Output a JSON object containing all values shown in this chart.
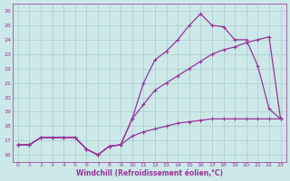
{
  "xlabel": "Windchill (Refroidissement éolien,°C)",
  "xlim": [
    -0.5,
    23.5
  ],
  "ylim": [
    15.5,
    26.5
  ],
  "yticks": [
    16,
    17,
    18,
    19,
    20,
    21,
    22,
    23,
    24,
    25,
    26
  ],
  "xticks": [
    0,
    1,
    2,
    3,
    4,
    5,
    6,
    7,
    8,
    9,
    10,
    11,
    12,
    13,
    14,
    15,
    16,
    17,
    18,
    19,
    20,
    21,
    22,
    23
  ],
  "bg_color": "#cce8e8",
  "line_color": "#993399",
  "grid_color": "#aacccc",
  "series1_x": [
    0,
    1,
    2,
    3,
    4,
    5,
    6,
    7,
    8,
    9,
    10,
    11,
    12,
    13,
    14,
    15,
    16,
    17,
    18,
    19,
    20,
    21,
    22,
    23
  ],
  "series1_y": [
    16.7,
    16.7,
    17.2,
    17.2,
    17.2,
    17.2,
    16.4,
    16.0,
    16.6,
    16.7,
    17.3,
    17.6,
    17.8,
    18.0,
    18.2,
    18.3,
    18.4,
    18.5,
    18.5,
    18.5,
    18.5,
    18.5,
    18.5,
    18.5
  ],
  "series2_x": [
    0,
    1,
    2,
    3,
    4,
    5,
    6,
    7,
    8,
    9,
    10,
    11,
    12,
    13,
    14,
    15,
    16,
    17,
    18,
    19,
    20,
    21,
    22,
    23
  ],
  "series2_y": [
    16.7,
    16.7,
    17.2,
    17.2,
    17.2,
    17.2,
    16.4,
    16.0,
    16.6,
    16.7,
    18.5,
    19.5,
    20.5,
    21.0,
    21.5,
    22.0,
    22.5,
    23.0,
    23.3,
    23.5,
    23.8,
    24.0,
    24.2,
    18.5
  ],
  "series3_x": [
    0,
    1,
    2,
    3,
    4,
    5,
    6,
    7,
    8,
    9,
    10,
    11,
    12,
    13,
    14,
    15,
    16,
    17,
    18,
    19,
    20,
    21,
    22,
    23
  ],
  "series3_y": [
    16.7,
    16.7,
    17.2,
    17.2,
    17.2,
    17.2,
    16.4,
    16.0,
    16.6,
    16.7,
    18.5,
    21.0,
    22.6,
    23.2,
    24.0,
    25.0,
    25.8,
    25.0,
    24.9,
    24.0,
    24.0,
    22.2,
    19.2,
    18.5
  ]
}
